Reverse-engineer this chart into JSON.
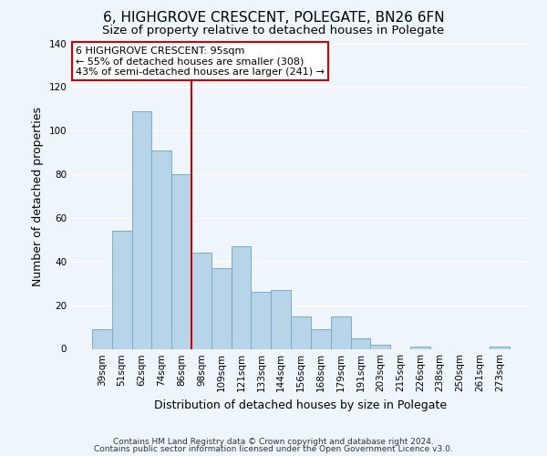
{
  "title": "6, HIGHGROVE CRESCENT, POLEGATE, BN26 6FN",
  "subtitle": "Size of property relative to detached houses in Polegate",
  "xlabel": "Distribution of detached houses by size in Polegate",
  "ylabel": "Number of detached properties",
  "categories": [
    "39sqm",
    "51sqm",
    "62sqm",
    "74sqm",
    "86sqm",
    "98sqm",
    "109sqm",
    "121sqm",
    "133sqm",
    "144sqm",
    "156sqm",
    "168sqm",
    "179sqm",
    "191sqm",
    "203sqm",
    "215sqm",
    "226sqm",
    "238sqm",
    "250sqm",
    "261sqm",
    "273sqm"
  ],
  "values": [
    9,
    54,
    109,
    91,
    80,
    44,
    37,
    47,
    26,
    27,
    15,
    9,
    15,
    5,
    2,
    0,
    1,
    0,
    0,
    0,
    1
  ],
  "bar_color": "#b8d4e8",
  "bar_edge_color": "#7baac7",
  "vline_color": "#cc0000",
  "vline_x_index": 5,
  "ylim": [
    0,
    140
  ],
  "yticks": [
    0,
    20,
    40,
    60,
    80,
    100,
    120,
    140
  ],
  "annotation_title": "6 HIGHGROVE CRESCENT: 95sqm",
  "annotation_line1": "← 55% of detached houses are smaller (308)",
  "annotation_line2": "43% of semi-detached houses are larger (241) →",
  "footer1": "Contains HM Land Registry data © Crown copyright and database right 2024.",
  "footer2": "Contains public sector information licensed under the Open Government Licence v3.0.",
  "background_color": "#eef5fb",
  "title_fontsize": 11,
  "subtitle_fontsize": 9.5,
  "axis_label_fontsize": 9,
  "tick_fontsize": 7.5,
  "annotation_fontsize": 8,
  "footer_fontsize": 6.5
}
